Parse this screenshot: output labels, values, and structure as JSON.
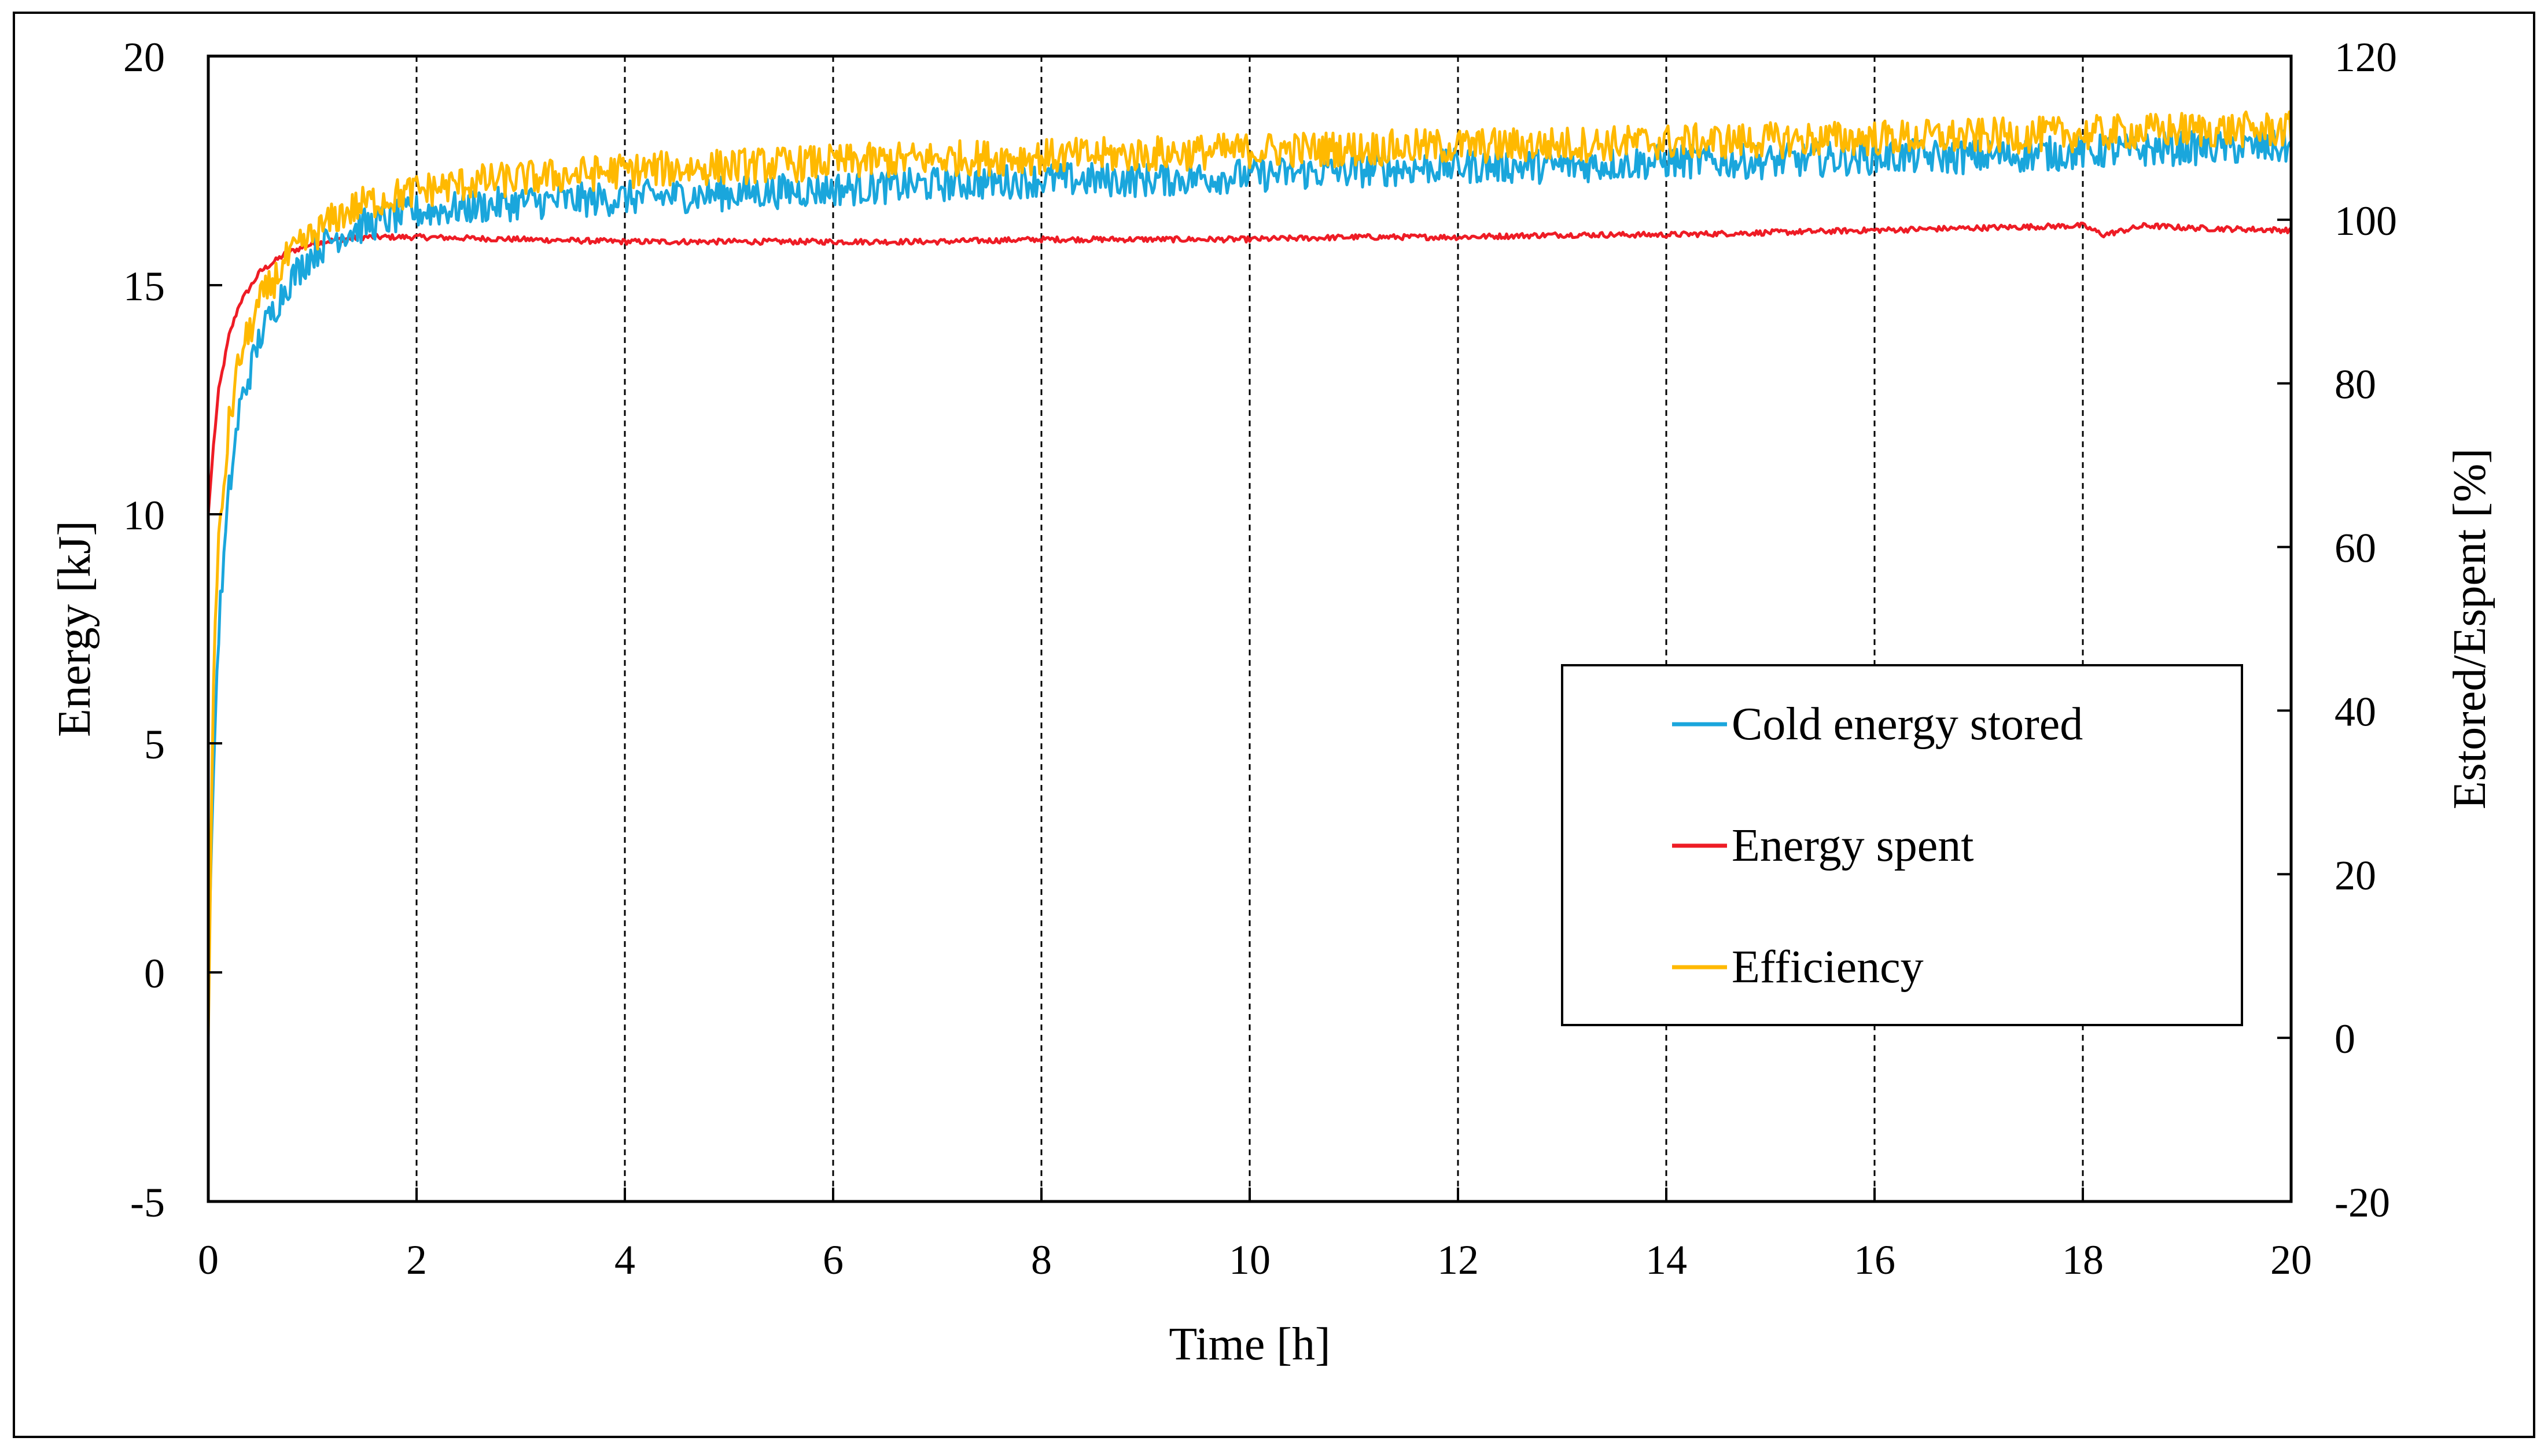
{
  "chart_data": {
    "type": "line",
    "title": "",
    "xlabel": "Time [h]",
    "ylabel": "Energy [kJ]",
    "y2label": "Estored/Espent [%]",
    "xlim": [
      0,
      20
    ],
    "ylim": [
      -5,
      20
    ],
    "y2lim": [
      -20,
      120
    ],
    "x_ticks": [
      "0",
      "2",
      "4",
      "6",
      "8",
      "10",
      "12",
      "14",
      "16",
      "18",
      "20"
    ],
    "y_ticks": [
      "-5",
      "0",
      "5",
      "10",
      "15",
      "20"
    ],
    "y2_ticks": [
      "-20",
      "0",
      "20",
      "40",
      "60",
      "80",
      "100",
      "120"
    ],
    "grid": "vertical dashed lines at each x tick",
    "legend_position": "right-center",
    "series": [
      {
        "name": "Cold energy stored",
        "axis": "left",
        "color": "#1aa6dc",
        "x": [
          0,
          0.05,
          0.1,
          0.2,
          0.3,
          0.5,
          0.75,
          1,
          1.25,
          1.5,
          2,
          2.5,
          3,
          4,
          5,
          6,
          7,
          8,
          9,
          10,
          11,
          12,
          13,
          14,
          15,
          16,
          17,
          18,
          19,
          20
        ],
        "y": [
          0,
          4.5,
          7.5,
          10.5,
          12.3,
          13.9,
          15.0,
          15.7,
          16.1,
          16.3,
          16.6,
          16.7,
          16.8,
          16.9,
          17.0,
          17.1,
          17.2,
          17.3,
          17.3,
          17.4,
          17.5,
          17.6,
          17.6,
          17.7,
          17.7,
          17.8,
          17.8,
          17.9,
          18.0,
          18.0
        ]
      },
      {
        "name": "Energy spent",
        "axis": "left",
        "color": "#ee1c25",
        "x": [
          0,
          0.05,
          0.1,
          0.2,
          0.3,
          0.5,
          0.75,
          1,
          1.25,
          1.5,
          2,
          3,
          4,
          5,
          6,
          7,
          8,
          9,
          10,
          11,
          12,
          13,
          14,
          15,
          16,
          17,
          18,
          18.2,
          18.6,
          19,
          20
        ],
        "y": [
          10.0,
          11.5,
          12.7,
          13.9,
          14.6,
          15.3,
          15.7,
          15.9,
          16.0,
          16.05,
          16.05,
          16.0,
          15.95,
          15.95,
          15.95,
          15.95,
          16.0,
          16.0,
          16.0,
          16.05,
          16.05,
          16.1,
          16.1,
          16.15,
          16.2,
          16.25,
          16.3,
          16.1,
          16.3,
          16.25,
          16.2
        ]
      },
      {
        "name": "Efficiency",
        "axis": "right",
        "color": "#ffb900",
        "x": [
          0,
          0.05,
          0.1,
          0.2,
          0.3,
          0.5,
          0.75,
          1,
          1.25,
          1.5,
          2,
          2.5,
          3,
          4,
          5,
          6,
          7,
          8,
          9,
          10,
          11,
          12,
          13,
          14,
          15,
          16,
          17,
          18,
          19,
          20
        ],
        "y": [
          0,
          45,
          60,
          75,
          83,
          90,
          95,
          98,
          100.5,
          102,
          103.5,
          104.5,
          105,
          106,
          106.5,
          107,
          107.5,
          107.7,
          108,
          108.5,
          108.7,
          109,
          109.2,
          109.5,
          109.7,
          110,
          110.2,
          110.5,
          111,
          111
        ]
      }
    ],
    "legend": [
      {
        "label": "Cold energy stored",
        "color": "#1aa6dc"
      },
      {
        "label": "Energy spent",
        "color": "#ee1c25"
      },
      {
        "label": "Efficiency",
        "color": "#ffb900"
      }
    ]
  }
}
